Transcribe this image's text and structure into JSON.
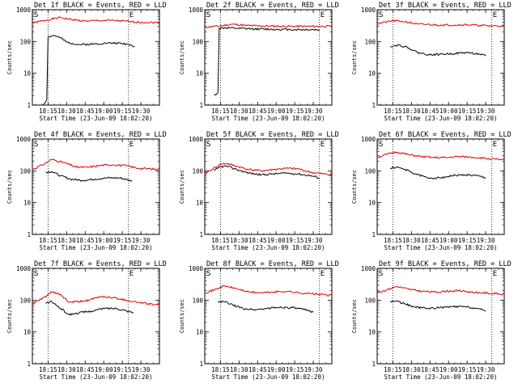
{
  "figure": {
    "ylabel": "Counts/sec",
    "xlabel": "Start Time (23-Jun-09 18:02:20)",
    "xticks": [
      "18:15",
      "18:30",
      "18:45",
      "19:00",
      "19:15",
      "19:30"
    ],
    "yticks": [
      "1",
      "10",
      "100",
      "1000"
    ],
    "marker_s": "S",
    "marker_e": "E",
    "colors": {
      "events": "#000000",
      "lld": "#e00000"
    }
  },
  "chart_data": [
    {
      "type": "line",
      "title": "Det 1f BLACK = Events, RED = LLD",
      "ylim": [
        1,
        1000
      ],
      "yscale": "log",
      "x_range": [
        "18:02:20",
        "19:45"
      ],
      "markers": {
        "S": "18:15",
        "E": "19:20"
      },
      "series": [
        {
          "name": "LLD",
          "color": "#e00000",
          "x": [
            "18:02",
            "18:15",
            "18:25",
            "18:35",
            "18:45",
            "18:55",
            "19:05",
            "19:15",
            "19:25",
            "19:35",
            "19:45"
          ],
          "values": [
            380,
            480,
            570,
            480,
            440,
            450,
            460,
            440,
            410,
            400,
            390
          ]
        },
        {
          "name": "Events",
          "color": "#000000",
          "x": [
            "18:11",
            "18:14",
            "18:15",
            "18:20",
            "18:25",
            "18:30",
            "18:40",
            "18:50",
            "19:00",
            "19:10",
            "19:20",
            "19:25"
          ],
          "values": [
            1,
            1.5,
            140,
            155,
            130,
            95,
            80,
            82,
            88,
            90,
            82,
            70
          ]
        }
      ]
    },
    {
      "type": "line",
      "title": "Det 2f BLACK = Events, RED = LLD",
      "ylim": [
        1,
        1000
      ],
      "yscale": "log",
      "x_range": [
        "18:02:20",
        "19:45"
      ],
      "markers": {
        "S": "18:15",
        "E": "19:35"
      },
      "series": [
        {
          "name": "LLD",
          "color": "#e00000",
          "x": [
            "18:02",
            "18:15",
            "18:25",
            "18:35",
            "18:45",
            "18:55",
            "19:05",
            "19:15",
            "19:25",
            "19:35",
            "19:45"
          ],
          "values": [
            280,
            310,
            350,
            320,
            310,
            305,
            300,
            300,
            300,
            300,
            300
          ]
        },
        {
          "name": "Events",
          "color": "#000000",
          "x": [
            "18:10",
            "18:13",
            "18:14",
            "18:20",
            "18:30",
            "18:40",
            "18:50",
            "19:00",
            "19:10",
            "19:20",
            "19:30",
            "19:35"
          ],
          "values": [
            2,
            2.5,
            260,
            270,
            255,
            250,
            245,
            240,
            238,
            236,
            235,
            230
          ]
        }
      ]
    },
    {
      "type": "line",
      "title": "Det 3f BLACK = Events, RED = LLD",
      "ylim": [
        1,
        1000
      ],
      "yscale": "log",
      "x_range": [
        "18:02:20",
        "19:45"
      ],
      "markers": {
        "S": "18:15",
        "E": "19:35"
      },
      "series": [
        {
          "name": "LLD",
          "color": "#e00000",
          "x": [
            "18:02",
            "18:15",
            "18:25",
            "18:35",
            "18:45",
            "18:55",
            "19:05",
            "19:15",
            "19:25",
            "19:35",
            "19:45"
          ],
          "values": [
            360,
            450,
            420,
            350,
            340,
            330,
            330,
            340,
            320,
            310,
            310
          ]
        },
        {
          "name": "Events",
          "color": "#000000",
          "x": [
            "18:13",
            "18:20",
            "18:28",
            "18:35",
            "18:45",
            "18:55",
            "19:05",
            "19:15",
            "19:25",
            "19:30"
          ],
          "values": [
            70,
            78,
            62,
            45,
            38,
            40,
            42,
            45,
            40,
            35
          ]
        }
      ]
    },
    {
      "type": "line",
      "title": "Det 4f BLACK = Events, RED = LLD",
      "ylim": [
        1,
        1000
      ],
      "yscale": "log",
      "x_range": [
        "18:02:20",
        "19:45"
      ],
      "markers": {
        "S": "18:15",
        "E": "19:20"
      },
      "series": [
        {
          "name": "LLD",
          "color": "#e00000",
          "x": [
            "18:02",
            "18:10",
            "18:18",
            "18:28",
            "18:38",
            "18:48",
            "18:58",
            "19:08",
            "19:18",
            "19:28",
            "19:38",
            "19:45"
          ],
          "values": [
            110,
            150,
            230,
            180,
            130,
            130,
            150,
            155,
            145,
            120,
            115,
            110
          ]
        },
        {
          "name": "Events",
          "color": "#000000",
          "x": [
            "18:13",
            "18:18",
            "18:25",
            "18:33",
            "18:43",
            "18:53",
            "19:03",
            "19:13",
            "19:23"
          ],
          "values": [
            90,
            95,
            70,
            55,
            50,
            55,
            60,
            60,
            48
          ]
        }
      ]
    },
    {
      "type": "line",
      "title": "Det 5f BLACK = Events, RED = LLD",
      "ylim": [
        1,
        1000
      ],
      "yscale": "log",
      "x_range": [
        "18:02:20",
        "19:45"
      ],
      "markers": {
        "S": "18:15",
        "E": "19:35"
      },
      "series": [
        {
          "name": "LLD",
          "color": "#e00000",
          "x": [
            "18:02",
            "18:08",
            "18:15",
            "18:20",
            "18:28",
            "18:38",
            "18:48",
            "18:58",
            "19:08",
            "19:18",
            "19:28",
            "19:38",
            "19:45"
          ],
          "values": [
            80,
            110,
            160,
            170,
            140,
            110,
            100,
            110,
            120,
            115,
            90,
            80,
            75
          ]
        },
        {
          "name": "Events",
          "color": "#000000",
          "x": [
            "18:10",
            "18:15",
            "18:20",
            "18:28",
            "18:38",
            "18:48",
            "18:58",
            "19:08",
            "19:18",
            "19:28",
            "19:35"
          ],
          "values": [
            100,
            135,
            140,
            110,
            85,
            75,
            80,
            85,
            80,
            70,
            60
          ]
        }
      ]
    },
    {
      "type": "line",
      "title": "Det 6f BLACK = Events, RED = LLD",
      "ylim": [
        1,
        1000
      ],
      "yscale": "log",
      "x_range": [
        "18:02:20",
        "19:45"
      ],
      "markers": {
        "S": "18:15",
        "E": "19:35"
      },
      "series": [
        {
          "name": "LLD",
          "color": "#e00000",
          "x": [
            "18:02",
            "18:10",
            "18:18",
            "18:28",
            "18:38",
            "18:48",
            "18:58",
            "19:08",
            "19:18",
            "19:28",
            "19:38",
            "19:45"
          ],
          "values": [
            260,
            330,
            390,
            320,
            280,
            260,
            260,
            280,
            270,
            250,
            230,
            220
          ]
        },
        {
          "name": "Events",
          "color": "#000000",
          "x": [
            "18:13",
            "18:18",
            "18:25",
            "18:33",
            "18:43",
            "18:53",
            "19:03",
            "19:13",
            "19:23",
            "19:30"
          ],
          "values": [
            120,
            130,
            110,
            80,
            60,
            60,
            70,
            75,
            70,
            60
          ]
        }
      ]
    },
    {
      "type": "line",
      "title": "Det 7f BLACK = Events, RED = LLD",
      "ylim": [
        1,
        1000
      ],
      "yscale": "log",
      "x_range": [
        "18:02:20",
        "19:45"
      ],
      "markers": {
        "S": "18:15",
        "E": "19:20"
      },
      "series": [
        {
          "name": "LLD",
          "color": "#e00000",
          "x": [
            "18:02",
            "18:10",
            "18:18",
            "18:25",
            "18:32",
            "18:40",
            "18:48",
            "18:58",
            "19:08",
            "19:18",
            "19:28",
            "19:38",
            "19:45"
          ],
          "values": [
            75,
            110,
            180,
            150,
            85,
            90,
            100,
            130,
            120,
            100,
            85,
            75,
            70
          ]
        },
        {
          "name": "Events",
          "color": "#000000",
          "x": [
            "18:13",
            "18:18",
            "18:25",
            "18:32",
            "18:40",
            "18:50",
            "19:00",
            "19:10",
            "19:20",
            "19:24"
          ],
          "values": [
            80,
            90,
            55,
            35,
            40,
            45,
            55,
            55,
            45,
            40
          ]
        }
      ]
    },
    {
      "type": "line",
      "title": "Det 8f BLACK = Events, RED = LLD",
      "ylim": [
        1,
        1000
      ],
      "yscale": "log",
      "x_range": [
        "18:02:20",
        "19:45"
      ],
      "markers": {
        "S": "18:15",
        "E": "19:35"
      },
      "series": [
        {
          "name": "LLD",
          "color": "#e00000",
          "x": [
            "18:02",
            "18:10",
            "18:18",
            "18:28",
            "18:38",
            "18:48",
            "18:58",
            "19:08",
            "19:18",
            "19:28",
            "19:38",
            "19:45"
          ],
          "values": [
            170,
            210,
            280,
            230,
            180,
            170,
            180,
            190,
            170,
            160,
            150,
            140
          ]
        },
        {
          "name": "Events",
          "color": "#000000",
          "x": [
            "18:13",
            "18:18",
            "18:25",
            "18:33",
            "18:43",
            "18:53",
            "19:03",
            "19:13",
            "19:23",
            "19:30"
          ],
          "values": [
            85,
            90,
            70,
            55,
            50,
            55,
            60,
            58,
            50,
            42
          ]
        }
      ]
    },
    {
      "type": "line",
      "title": "Det 9f BLACK = Events, RED = LLD",
      "ylim": [
        1,
        1000
      ],
      "yscale": "log",
      "x_range": [
        "18:02:20",
        "19:45"
      ],
      "markers": {
        "S": "18:15",
        "E": "19:35"
      },
      "series": [
        {
          "name": "LLD",
          "color": "#e00000",
          "x": [
            "18:02",
            "18:10",
            "18:18",
            "18:28",
            "18:38",
            "18:48",
            "18:58",
            "19:08",
            "19:18",
            "19:28",
            "19:38",
            "19:45"
          ],
          "values": [
            170,
            210,
            270,
            220,
            190,
            180,
            190,
            200,
            180,
            170,
            160,
            150
          ]
        },
        {
          "name": "Events",
          "color": "#000000",
          "x": [
            "18:13",
            "18:18",
            "18:25",
            "18:33",
            "18:43",
            "18:53",
            "19:03",
            "19:13",
            "19:23",
            "19:30"
          ],
          "values": [
            90,
            95,
            75,
            60,
            55,
            58,
            62,
            62,
            55,
            45
          ]
        }
      ]
    }
  ]
}
